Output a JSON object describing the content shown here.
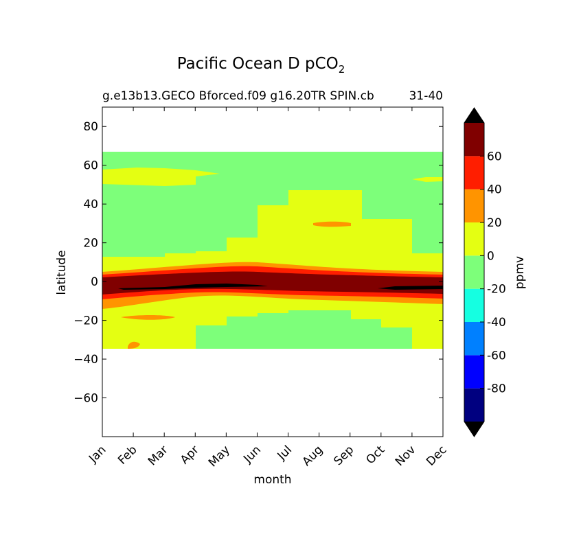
{
  "chart_data": {
    "type": "heatmap",
    "title_main": "Pacific Ocean D pCO",
    "title_sub": "2",
    "subtitle_left": "g.e13b13.GECO Bforced.f09 g16.20TR SPIN.cb",
    "subtitle_right": "31-40",
    "xlabel": "month",
    "ylabel": "latitude",
    "colorbar_label": "ppmv",
    "x_categories": [
      "Jan",
      "Feb",
      "Mar",
      "Apr",
      "May",
      "Jun",
      "Jul",
      "Aug",
      "Sep",
      "Oct",
      "Nov",
      "Dec"
    ],
    "ylim": [
      -80,
      90
    ],
    "y_ticks": [
      {
        "v": 80,
        "t": "80"
      },
      {
        "v": 60,
        "t": "60"
      },
      {
        "v": 40,
        "t": "40"
      },
      {
        "v": 20,
        "t": "20"
      },
      {
        "v": 0,
        "t": "0"
      },
      {
        "v": -20,
        "t": "−20"
      },
      {
        "v": -40,
        "t": "−40"
      },
      {
        "v": -60,
        "t": "−60"
      }
    ],
    "data_lat_range": [
      -34,
      67
    ],
    "levels": [
      -100,
      -80,
      -60,
      -40,
      -20,
      0,
      20,
      40,
      60,
      80
    ],
    "level_colors": [
      "#000080",
      "#0000ff",
      "#0080ff",
      "#15ffe1",
      "#7dff7a",
      "#e4ff12",
      "#ff9400",
      "#ff1e00",
      "#800000"
    ],
    "extend_colors": {
      "under": "#000000",
      "over": "#000000"
    },
    "colorbar_ticks": [
      "60",
      "40",
      "20",
      "0",
      "-20",
      "-40",
      "-60",
      "-80"
    ],
    "regions": [
      {
        "band": "0 to 20",
        "color": "#e4ff12",
        "desc": "north subtropics 13-20N Jan-May, expanding to 47N Jul-Oct"
      },
      {
        "band": "0 to 20",
        "color": "#e4ff12",
        "desc": "high-latitude band 50-58N Jan-Apr"
      },
      {
        "band": "-20 to 0",
        "color": "#7dff7a",
        "desc": "mid-latitudes 20-50N and 14-34S May-Dec"
      },
      {
        "band": "20 to 40",
        "color": "#ff9400",
        "desc": "equatorial flanks 5N and 5-15S"
      },
      {
        "band": "40 to 60",
        "color": "#ff1e00",
        "desc": "equatorial edges"
      },
      {
        "band": "60 to 80",
        "color": "#800000",
        "desc": "equatorial core 4N-6S"
      },
      {
        "band": "> 80",
        "color": "#000000",
        "desc": "equator core near 2S, Apr-Jun and Nov-Dec"
      }
    ]
  }
}
